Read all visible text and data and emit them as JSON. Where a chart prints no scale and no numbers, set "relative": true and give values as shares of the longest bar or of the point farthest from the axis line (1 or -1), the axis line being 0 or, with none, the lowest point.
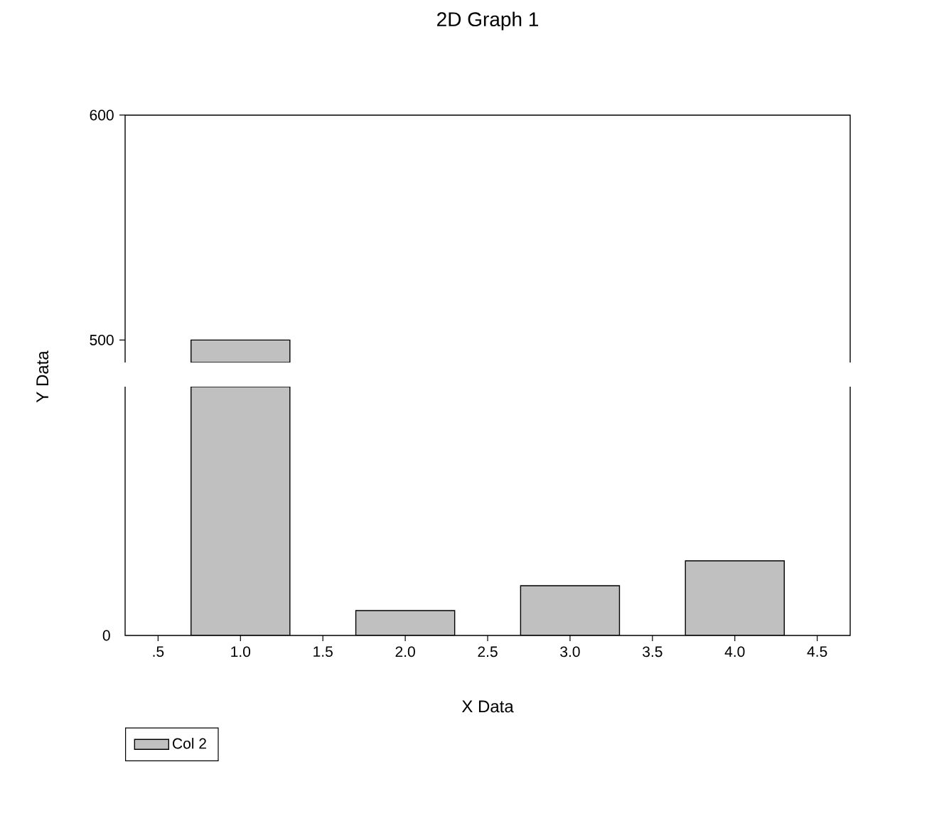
{
  "chart_data": [
    {
      "type": "bar",
      "title": "2D Graph 1",
      "x": [
        1
      ],
      "values": [
        500
      ],
      "color": "#c0c0c0",
      "xlim": [
        0.3,
        4.7
      ],
      "ylim": [
        490,
        600
      ],
      "yticks": [
        500,
        600
      ],
      "tick_labels": "y",
      "xticks": [
        {
          "value": 0.5,
          "label": null
        },
        {
          "value": 1,
          "label": null
        },
        {
          "value": 1.5,
          "label": null
        },
        {
          "value": 2,
          "label": null
        },
        {
          "value": 2.5,
          "label": null
        },
        {
          "value": 3,
          "label": null
        },
        {
          "value": 3.5,
          "label": null
        },
        {
          "value": 4,
          "label": null
        },
        {
          "value": 4.5,
          "label": null
        }
      ]
    },
    {
      "type": "bar",
      "relative": true,
      "x": [
        1,
        2,
        3,
        4
      ],
      "xlim": [
        0.3,
        4.7
      ],
      "xticks": [
        {
          "value": 0.5,
          "label": ".5"
        },
        {
          "value": 1,
          "label": "1.0"
        },
        {
          "value": 1.5,
          "label": "1.5"
        },
        {
          "value": 2,
          "label": "2.0"
        },
        {
          "value": 2.5,
          "label": "2.5"
        },
        {
          "value": 3,
          "label": "3.0"
        },
        {
          "value": 3.5,
          "label": "3.5"
        },
        {
          "value": 4,
          "label": "4.0"
        },
        {
          "value": 4.5,
          "label": "4.5"
        }
      ],
      "xlabel": "X Data",
      "ylabel": "Y Data",
      "legend": "bottom left",
      "series": [
        {
          "name": "Col 2",
          "color": "#c0c0c0",
          "values": [
            1,
            0.1,
            0.2,
            0.3
          ]
        }
      ],
      "annotations": [
        "0"
      ]
    }
  ]
}
